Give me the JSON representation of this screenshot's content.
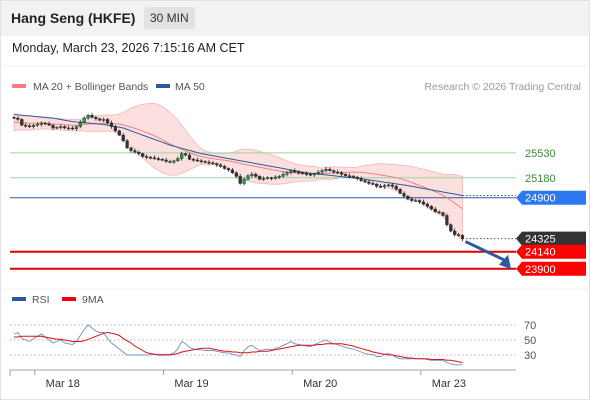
{
  "header": {
    "title": "Hang Seng (HKFE)",
    "interval": "30 MIN",
    "datetime": "Monday, March 23, 2026 7:15:16 AM CET"
  },
  "chart_data": [
    {
      "type": "line",
      "panel": "price",
      "legend": [
        {
          "name": "MA 20 + Bollinger Bands",
          "color": "#f08080"
        },
        {
          "name": "MA 50",
          "color": "#2c5a9c"
        }
      ],
      "credit": "Research © 2026 Trading Central",
      "x_ticks": [
        {
          "label": "Mar 18",
          "index": 12
        },
        {
          "label": "Mar 19",
          "index": 45
        },
        {
          "label": "Mar 20",
          "index": 78
        },
        {
          "label": "Mar 23",
          "index": 111
        }
      ],
      "ylim": [
        23630,
        26330
      ],
      "series": [
        {
          "name": "Price",
          "close": [
            26020,
            26000,
            25920,
            25910,
            25900,
            25920,
            25930,
            25950,
            25940,
            25920,
            25880,
            25890,
            25900,
            25880,
            25880,
            25870,
            25900,
            25960,
            26020,
            26060,
            26030,
            26010,
            25990,
            26000,
            25950,
            25900,
            25840,
            25780,
            25700,
            25600,
            25560,
            25540,
            25520,
            25480,
            25470,
            25460,
            25450,
            25440,
            25430,
            25410,
            25400,
            25420,
            25450,
            25520,
            25500,
            25440,
            25430,
            25420,
            25410,
            25400,
            25390,
            25380,
            25360,
            25340,
            25310,
            25290,
            25250,
            25200,
            25100,
            25160,
            25210,
            25230,
            25200,
            25160,
            25170,
            25180,
            25170,
            25190,
            25200,
            25230,
            25250,
            25280,
            25260,
            25250,
            25240,
            25230,
            25220,
            25240,
            25260,
            25280,
            25300,
            25280,
            25260,
            25250,
            25230,
            25210,
            25200,
            25190,
            25170,
            25140,
            25120,
            25100,
            25090,
            25060,
            25050,
            25070,
            25080,
            25060,
            25020,
            24960,
            24920,
            24880,
            24860,
            24860,
            24840,
            24810,
            24780,
            24740,
            24700,
            24690,
            24650,
            24520,
            24430,
            24380,
            24370,
            24325
          ]
        },
        {
          "name": "MA 20",
          "values": [
            25960,
            25956,
            25955,
            25951,
            25949,
            25946,
            25946,
            25946,
            25944,
            25941,
            25936,
            25934,
            25932,
            25927,
            25923,
            25920,
            25920,
            25923,
            25929,
            25936,
            25940,
            25941,
            25943,
            25948,
            25950,
            25947,
            25942,
            25935,
            25924,
            25908,
            25893,
            25875,
            25856,
            25835,
            25814,
            25793,
            25771,
            25745,
            25716,
            25686,
            25658,
            25630,
            25605,
            25581,
            25557,
            25534,
            25513,
            25495,
            25479,
            25466,
            25457,
            25449,
            25441,
            25434,
            25426,
            25418,
            25408,
            25397,
            25381,
            25369,
            25359,
            25349,
            25339,
            25327,
            25317,
            25306,
            25295,
            25285,
            25276,
            25268,
            25260,
            25255,
            25250,
            25245,
            25242,
            25241,
            25239,
            25239,
            25239,
            25239,
            25241,
            25244,
            25247,
            25251,
            25255,
            25257,
            25259,
            25259,
            25258,
            25256,
            25250,
            25243,
            25237,
            25230,
            25221,
            25211,
            25202,
            25193,
            25181,
            25167,
            25151,
            25132,
            25112,
            25092,
            25072,
            25051,
            25030,
            25008,
            24984,
            24960,
            24933,
            24899,
            24861,
            24822,
            24783,
            24742
          ]
        },
        {
          "name": "MA 50",
          "values": [
            26070,
            26065,
            26060,
            26055,
            26050,
            26045,
            26040,
            26035,
            26030,
            26025,
            26020,
            26010,
            26000,
            25990,
            25980,
            25970,
            25965,
            25960,
            25955,
            25950,
            25945,
            25940,
            25935,
            25930,
            25920,
            25910,
            25900,
            25890,
            25880,
            25860,
            25840,
            25820,
            25800,
            25780,
            25760,
            25740,
            25720,
            25700,
            25680,
            25660,
            25640,
            25625,
            25610,
            25595,
            25580,
            25565,
            25550,
            25535,
            25520,
            25510,
            25500,
            25490,
            25480,
            25470,
            25460,
            25450,
            25440,
            25430,
            25420,
            25410,
            25400,
            25390,
            25380,
            25370,
            25360,
            25350,
            25340,
            25330,
            25320,
            25310,
            25300,
            25290,
            25280,
            25270,
            25260,
            25252,
            25245,
            25238,
            25232,
            25226,
            25220,
            25214,
            25208,
            25202,
            25196,
            25190,
            25184,
            25178,
            25172,
            25165,
            25158,
            25150,
            25142,
            25134,
            25126,
            25118,
            25110,
            25102,
            25094,
            25086,
            25078,
            25070,
            25060,
            25050,
            25040,
            25030,
            25020,
            25010,
            25000,
            24990,
            24980,
            24970,
            24960,
            24950,
            24940,
            24930
          ]
        }
      ],
      "levels": [
        {
          "value": 25530,
          "label": "25530",
          "style": "resistance-green"
        },
        {
          "value": 25180,
          "label": "25180",
          "style": "resistance-green"
        },
        {
          "value": 24900,
          "label": "24900",
          "style": "pivot-blue"
        },
        {
          "value": 24325,
          "label": "24325",
          "style": "last-price"
        },
        {
          "value": 24140,
          "label": "24140",
          "style": "support-red"
        },
        {
          "value": 23900,
          "label": "23900",
          "style": "support-red"
        }
      ],
      "forecast_arrow": {
        "from": 24325,
        "to": 23900
      }
    },
    {
      "type": "line",
      "panel": "rsi",
      "legend": [
        {
          "name": "RSI",
          "color": "#2c5a9c"
        },
        {
          "name": "9MA",
          "color": "#ff0000"
        }
      ],
      "y_ticks": [
        70,
        50,
        30
      ],
      "ylim": [
        10,
        90
      ],
      "series": [
        {
          "name": "RSI",
          "values": [
            58,
            60,
            52,
            50,
            48,
            52,
            55,
            58,
            54,
            50,
            46,
            48,
            50,
            46,
            45,
            44,
            48,
            56,
            64,
            70,
            66,
            62,
            60,
            60,
            52,
            46,
            42,
            38,
            34,
            30,
            30,
            30,
            30,
            30,
            30,
            30,
            31,
            31,
            31,
            31,
            31,
            33,
            38,
            48,
            45,
            40,
            38,
            37,
            37,
            36,
            36,
            36,
            35,
            34,
            33,
            33,
            31,
            30,
            28,
            36,
            41,
            43,
            39,
            36,
            37,
            38,
            37,
            39,
            40,
            43,
            45,
            48,
            45,
            44,
            43,
            42,
            41,
            44,
            46,
            48,
            50,
            47,
            45,
            44,
            42,
            40,
            39,
            38,
            36,
            34,
            32,
            31,
            31,
            28,
            28,
            31,
            32,
            30,
            27,
            25,
            25,
            25,
            25,
            25,
            25,
            25,
            24,
            23,
            23,
            23,
            23,
            20,
            18,
            17,
            17,
            17
          ]
        },
        {
          "name": "9MA",
          "values": [
            54,
            54,
            55,
            55,
            55,
            55,
            55,
            55,
            54,
            53,
            52,
            51,
            51,
            50,
            49,
            48,
            48,
            48,
            49,
            51,
            53,
            55,
            57,
            59,
            60,
            59,
            58,
            56,
            52,
            49,
            46,
            42,
            39,
            36,
            33,
            32,
            31,
            30,
            30,
            30,
            30,
            31,
            32,
            34,
            35,
            36,
            37,
            38,
            39,
            39,
            39,
            38,
            37,
            36,
            35,
            35,
            34,
            34,
            33,
            33,
            33,
            34,
            34,
            35,
            35,
            35,
            36,
            37,
            38,
            39,
            40,
            41,
            42,
            43,
            43,
            43,
            43,
            43,
            44,
            44,
            45,
            45,
            45,
            45,
            45,
            44,
            43,
            42,
            40,
            39,
            37,
            36,
            34,
            33,
            32,
            31,
            30,
            30,
            29,
            28,
            27,
            26,
            26,
            25,
            25,
            25,
            25,
            24,
            24,
            24,
            24,
            23,
            23,
            22,
            21,
            20
          ]
        }
      ]
    }
  ]
}
